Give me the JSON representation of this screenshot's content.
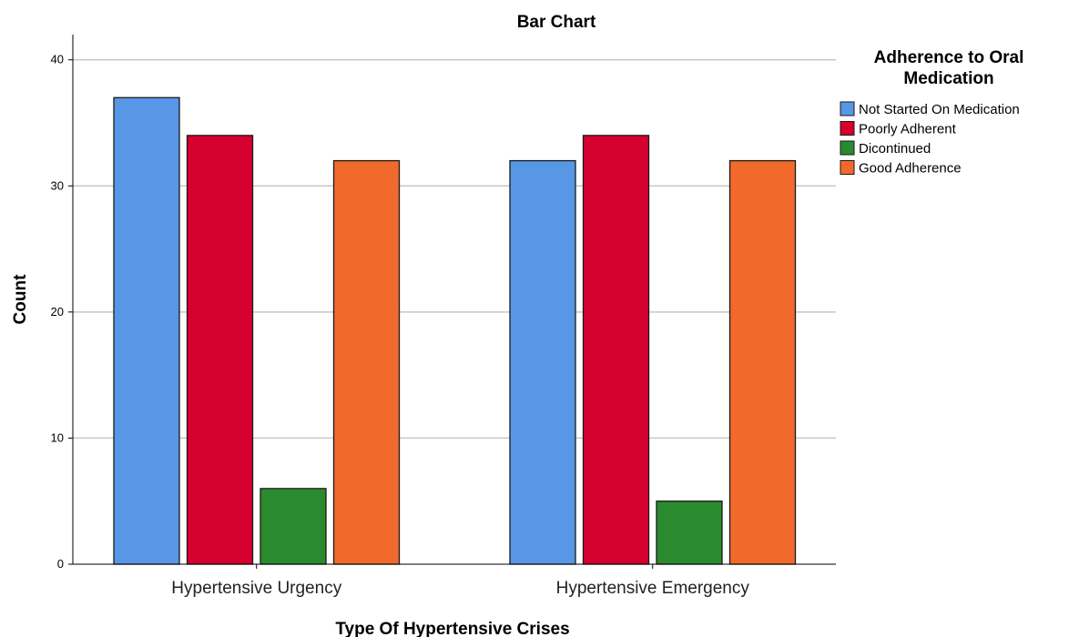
{
  "chart_data": {
    "type": "bar",
    "title": "Bar Chart",
    "xlabel": "Type Of Hypertensive Crises",
    "ylabel": "Count",
    "categories": [
      "Hypertensive Urgency",
      "Hypertensive Emergency"
    ],
    "ylim": [
      0,
      42
    ],
    "yticks": [
      0,
      10,
      20,
      30,
      40
    ],
    "grid": true,
    "legend": {
      "title_lines": [
        "Adherence to Oral",
        "Medication"
      ],
      "position": "right"
    },
    "series": [
      {
        "name": "Not Started On Medication",
        "color": "#5896e6",
        "values": [
          37,
          32
        ]
      },
      {
        "name": "Poorly Adherent",
        "color": "#d6002f",
        "values": [
          34,
          34
        ]
      },
      {
        "name": "Dicontinued",
        "color": "#2a8a2e",
        "values": [
          6,
          5
        ]
      },
      {
        "name": "Good Adherence",
        "color": "#f2692c",
        "values": [
          32,
          32
        ]
      }
    ]
  }
}
